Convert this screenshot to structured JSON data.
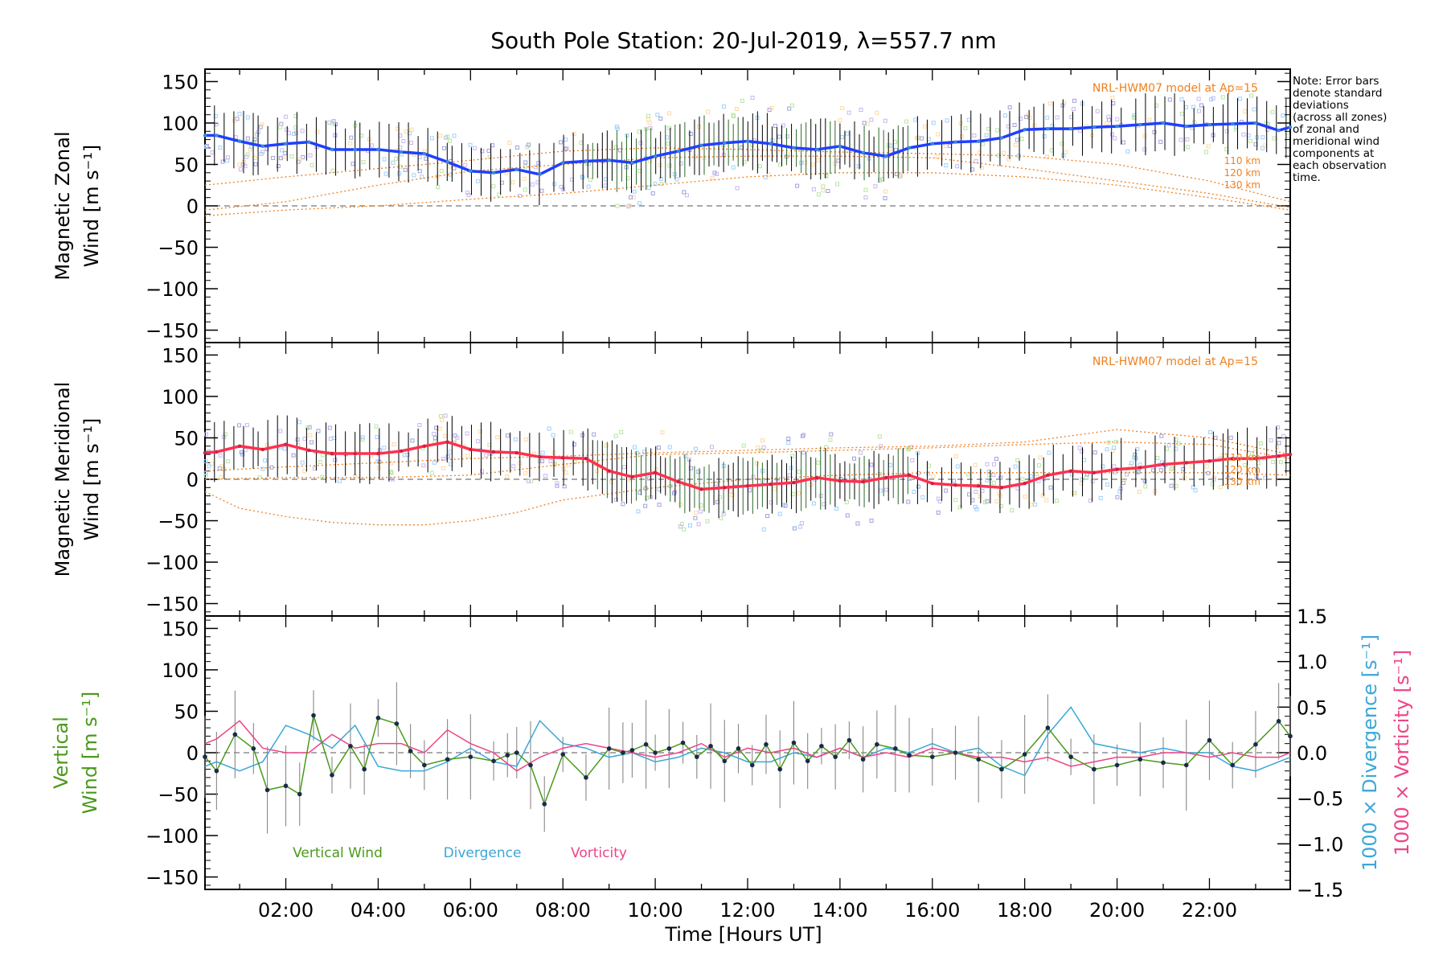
{
  "figure_title": "South Pole Station: 20-Jul-2019, λ=557.7 nm",
  "note_lines": [
    "Note: Error bars",
    "denote standard",
    "deviations",
    "(across all zones)",
    "of zonal and",
    "meridional wind",
    "components at",
    "each observation",
    "time."
  ],
  "colors": {
    "zonal": "#1f3fff",
    "meridional": "#ff3050",
    "model": "#f08020",
    "vertical": "#4a9a1a",
    "divergence": "#3ba7d8",
    "vorticity": "#ee4488",
    "dots": "#1a2a4a",
    "errorbar": "#000000",
    "scatter": "#a0a0e0",
    "zero": "#777777"
  },
  "chart_data": [
    {
      "type": "line",
      "id": "zonal",
      "ylabel_lines": [
        "Magnetic Zonal",
        "Wind [m s⁻¹]"
      ],
      "ylim": [
        -165,
        165
      ],
      "ytick_values": [
        -150,
        -100,
        -50,
        0,
        50,
        100,
        150
      ],
      "ytick_labels": [
        "−150",
        "−100",
        "−50",
        "0",
        "50",
        "100",
        "150"
      ],
      "xlim": [
        0.25,
        23.75
      ],
      "model_label": "NRL-HWM07 model at Ap=15",
      "model_altitude_labels": [
        "110 km",
        "120 km",
        "130 km"
      ],
      "series": [
        {
          "name": "Magnetic Zonal Wind (mean)",
          "x": [
            0.25,
            0.5,
            1,
            1.5,
            2,
            2.5,
            3,
            3.5,
            4,
            4.5,
            5,
            5.5,
            6,
            6.5,
            7,
            7.5,
            8,
            8.5,
            9,
            9.5,
            10,
            10.5,
            11,
            11.5,
            12,
            12.5,
            13,
            13.5,
            14,
            14.5,
            15,
            15.5,
            16,
            16.5,
            17,
            17.5,
            18,
            18.5,
            19,
            19.5,
            20,
            20.5,
            21,
            21.5,
            22,
            22.5,
            23,
            23.5,
            23.75
          ],
          "y": [
            85,
            85,
            78,
            72,
            75,
            77,
            68,
            68,
            68,
            65,
            63,
            53,
            42,
            40,
            44,
            38,
            52,
            54,
            55,
            52,
            60,
            66,
            73,
            76,
            78,
            75,
            70,
            68,
            72,
            64,
            60,
            70,
            75,
            77,
            78,
            82,
            92,
            93,
            93,
            95,
            96,
            98,
            100,
            96,
            98,
            99,
            100,
            91,
            95
          ]
        },
        {
          "name": "Model 110 km",
          "x": [
            0.25,
            2,
            4,
            6,
            8,
            10,
            12,
            14,
            16,
            18,
            20,
            22,
            23.75
          ],
          "y": [
            25,
            35,
            45,
            55,
            66,
            70,
            68,
            65,
            63,
            60,
            50,
            30,
            5
          ]
        },
        {
          "name": "Model 120 km",
          "x": [
            0.25,
            2,
            4,
            6,
            8,
            10,
            12,
            14,
            16,
            18,
            20,
            22,
            23.75
          ],
          "y": [
            -5,
            5,
            25,
            42,
            50,
            58,
            60,
            60,
            58,
            45,
            30,
            15,
            -2
          ]
        },
        {
          "name": "Model 130 km",
          "x": [
            0.25,
            2,
            4,
            6,
            8,
            10,
            12,
            14,
            16,
            18,
            20,
            22,
            23.75
          ],
          "y": [
            -12,
            -5,
            0,
            8,
            15,
            25,
            35,
            40,
            40,
            35,
            25,
            10,
            -5
          ]
        }
      ]
    },
    {
      "type": "line",
      "id": "meridional",
      "ylabel_lines": [
        "Magnetic Meridional",
        "Wind [m s⁻¹]"
      ],
      "ylim": [
        -165,
        165
      ],
      "ytick_values": [
        -150,
        -100,
        -50,
        0,
        50,
        100,
        150
      ],
      "ytick_labels": [
        "−150",
        "−100",
        "−50",
        "0",
        "50",
        "100",
        "150"
      ],
      "xlim": [
        0.25,
        23.75
      ],
      "model_label": "NRL-HWM07 model at Ap=15",
      "model_altitude_labels": [
        "110 km",
        "120 km",
        "130 km"
      ],
      "series": [
        {
          "name": "Magnetic Meridional Wind (mean)",
          "x": [
            0.25,
            0.5,
            1,
            1.5,
            2,
            2.5,
            3,
            3.5,
            4,
            4.5,
            5,
            5.5,
            6,
            6.5,
            7,
            7.5,
            8,
            8.5,
            9,
            9.5,
            10,
            10.5,
            11,
            11.5,
            12,
            12.5,
            13,
            13.5,
            14,
            14.5,
            15,
            15.5,
            16,
            16.5,
            17,
            17.5,
            18,
            18.5,
            19,
            19.5,
            20,
            20.5,
            21,
            21.5,
            22,
            22.5,
            23,
            23.5,
            23.75
          ],
          "y": [
            32,
            33,
            40,
            36,
            42,
            35,
            31,
            31,
            31,
            34,
            40,
            45,
            36,
            33,
            32,
            27,
            26,
            25,
            10,
            3,
            8,
            -3,
            -12,
            -10,
            -8,
            -6,
            -4,
            2,
            -2,
            -3,
            2,
            5,
            -5,
            -7,
            -8,
            -10,
            -5,
            5,
            10,
            8,
            12,
            14,
            18,
            20,
            22,
            25,
            25,
            28,
            30
          ]
        },
        {
          "name": "Model 110 km",
          "x": [
            0.25,
            2,
            4,
            6,
            8,
            10,
            12,
            14,
            16,
            18,
            20,
            22,
            23.75
          ],
          "y": [
            10,
            15,
            20,
            25,
            28,
            32,
            35,
            38,
            40,
            45,
            60,
            50,
            30
          ]
        },
        {
          "name": "Model 120 km",
          "x": [
            0.25,
            2,
            4,
            6,
            8,
            10,
            12,
            14,
            16,
            18,
            20,
            22,
            23.75
          ],
          "y": [
            0,
            2,
            2,
            5,
            18,
            30,
            32,
            35,
            38,
            42,
            45,
            42,
            25
          ]
        },
        {
          "name": "Model 130 km",
          "x": [
            0.25,
            1,
            2,
            3,
            4,
            5,
            6,
            7,
            8,
            10,
            12,
            14,
            16,
            18,
            20,
            22,
            23.75
          ],
          "y": [
            -15,
            -35,
            -45,
            -52,
            -55,
            -55,
            -50,
            -40,
            -25,
            -10,
            0,
            5,
            8,
            8,
            8,
            8,
            5
          ]
        }
      ]
    },
    {
      "type": "line",
      "id": "vertical",
      "ylabel_lines": [
        "Vertical",
        "Wind [m s⁻¹]"
      ],
      "y2label_divergence": "1000 × Divergence [s⁻¹]",
      "y2label_vorticity": "1000 × Vorticity [s⁻¹]",
      "ylim": [
        -165,
        165
      ],
      "ytick_values": [
        -150,
        -100,
        -50,
        0,
        50,
        100,
        150
      ],
      "ytick_labels": [
        "−150",
        "−100",
        "−50",
        "0",
        "50",
        "100",
        "150"
      ],
      "y2lim": [
        -1.5,
        1.5
      ],
      "y2tick_values": [
        -1.5,
        -1.0,
        -0.5,
        0.0,
        0.5,
        1.0,
        1.5
      ],
      "y2tick_labels": [
        "−1.5",
        "−1.0",
        "−0.5",
        "0.0",
        "0.5",
        "1.0",
        "1.5"
      ],
      "xlim": [
        0.25,
        23.75
      ],
      "xlabel": "Time [Hours UT]",
      "xtick_values": [
        2,
        4,
        6,
        8,
        10,
        12,
        14,
        16,
        18,
        20,
        22
      ],
      "xtick_labels": [
        "02:00",
        "04:00",
        "06:00",
        "08:00",
        "10:00",
        "12:00",
        "14:00",
        "16:00",
        "18:00",
        "20:00",
        "22:00"
      ],
      "legend": [
        "Vertical Wind",
        "Divergence",
        "Vorticity"
      ],
      "series": [
        {
          "name": "Vertical Wind",
          "axis": "left",
          "x": [
            0.25,
            0.5,
            0.9,
            1.3,
            1.6,
            2,
            2.3,
            2.6,
            3,
            3.4,
            3.7,
            4,
            4.4,
            4.7,
            5,
            5.5,
            6,
            6.5,
            6.8,
            7,
            7.3,
            7.6,
            8,
            8.5,
            9,
            9.3,
            9.5,
            9.8,
            10,
            10.3,
            10.6,
            10.9,
            11.2,
            11.5,
            11.8,
            12.1,
            12.4,
            12.7,
            13,
            13.3,
            13.6,
            13.9,
            14.2,
            14.5,
            14.8,
            15.2,
            15.5,
            16,
            16.5,
            17,
            17.5,
            18,
            18.5,
            19,
            19.5,
            20,
            20.5,
            21,
            21.5,
            22,
            22.5,
            23,
            23.5,
            23.75
          ],
          "y": [
            -5,
            -22,
            22,
            5,
            -45,
            -40,
            -50,
            45,
            -27,
            8,
            -20,
            42,
            35,
            2,
            -15,
            -8,
            -5,
            -10,
            -3,
            0,
            -15,
            -62,
            -2,
            -30,
            5,
            0,
            3,
            10,
            0,
            5,
            12,
            -5,
            8,
            -10,
            5,
            -15,
            10,
            -20,
            12,
            -10,
            8,
            -5,
            15,
            -8,
            10,
            5,
            -3,
            -5,
            0,
            -8,
            -20,
            -2,
            30,
            -5,
            -20,
            -15,
            -8,
            -12,
            -15,
            15,
            -15,
            10,
            38,
            20
          ]
        },
        {
          "name": "Divergence",
          "axis": "right",
          "x": [
            0.25,
            0.5,
            1,
            1.5,
            2,
            2.5,
            3,
            3.5,
            4,
            4.5,
            5,
            5.5,
            6,
            6.5,
            7,
            7.5,
            8,
            8.5,
            9,
            9.5,
            10,
            10.5,
            11,
            11.5,
            12,
            12.5,
            13,
            13.5,
            14,
            14.5,
            15,
            15.5,
            16,
            16.5,
            17,
            17.5,
            18,
            18.5,
            19,
            19.5,
            20,
            20.5,
            21,
            21.5,
            22,
            22.5,
            23,
            23.5,
            23.75
          ],
          "y": [
            -0.15,
            -0.1,
            -0.2,
            -0.1,
            0.3,
            0.2,
            0.05,
            0.3,
            -0.15,
            -0.2,
            -0.2,
            -0.1,
            0.05,
            -0.1,
            -0.15,
            0.35,
            0.1,
            0.05,
            -0.05,
            0.0,
            -0.1,
            -0.05,
            0.05,
            0.0,
            -0.1,
            -0.1,
            0.0,
            -0.05,
            0.05,
            -0.05,
            0.05,
            0.0,
            0.1,
            0.0,
            0.05,
            -0.15,
            -0.25,
            0.2,
            0.5,
            0.1,
            0.05,
            0.0,
            0.05,
            0.0,
            0.0,
            -0.15,
            -0.2,
            -0.1,
            -0.05
          ]
        },
        {
          "name": "Vorticity",
          "axis": "right",
          "x": [
            0.25,
            0.5,
            1,
            1.5,
            2,
            2.5,
            3,
            3.5,
            4,
            4.5,
            5,
            5.5,
            6,
            6.5,
            7,
            7.5,
            8,
            8.5,
            9,
            9.5,
            10,
            10.5,
            11,
            11.5,
            12,
            12.5,
            13,
            13.5,
            14,
            14.5,
            15,
            15.5,
            16,
            16.5,
            17,
            17.5,
            18,
            18.5,
            19,
            19.5,
            20,
            20.5,
            21,
            21.5,
            22,
            22.5,
            23,
            23.5,
            23.75
          ],
          "y": [
            0.1,
            0.15,
            0.35,
            0.05,
            0.0,
            0.0,
            0.2,
            0.05,
            0.1,
            0.1,
            0.0,
            0.25,
            0.1,
            0.0,
            -0.2,
            -0.05,
            0.05,
            0.1,
            0.05,
            0.0,
            -0.05,
            0.0,
            0.1,
            -0.05,
            0.05,
            0.0,
            0.05,
            -0.05,
            0.05,
            -0.05,
            0.0,
            -0.05,
            0.05,
            0.0,
            -0.05,
            -0.05,
            -0.1,
            -0.05,
            -0.15,
            -0.1,
            -0.05,
            -0.05,
            0.0,
            0.0,
            -0.05,
            0.0,
            -0.05,
            -0.05,
            0.0
          ]
        }
      ]
    }
  ]
}
